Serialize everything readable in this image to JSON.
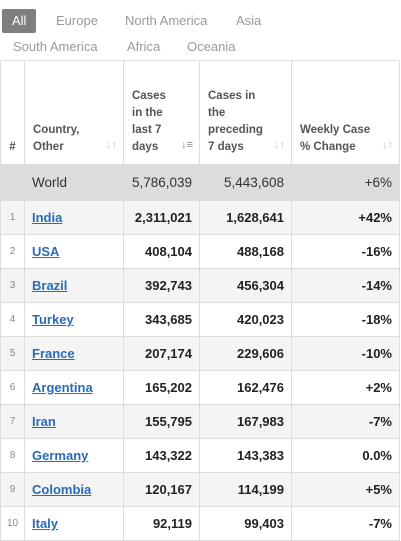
{
  "tabs": [
    "All",
    "Europe",
    "North America",
    "Asia",
    "South America",
    "Africa",
    "Oceania"
  ],
  "headers": {
    "rank": "#",
    "country": "Country, Other",
    "cases7": "Cases in the last 7 days",
    "casesPrev": "Cases in the preceding 7 days",
    "change": "Weekly Case % Change"
  },
  "world": {
    "name": "World",
    "cases7": "5,786,039",
    "casesPrev": "5,443,608",
    "change": "+6%"
  },
  "rows": [
    {
      "rank": "1",
      "name": "India",
      "cases7": "2,311,021",
      "casesPrev": "1,628,641",
      "change": "+42%"
    },
    {
      "rank": "2",
      "name": "USA",
      "cases7": "408,104",
      "casesPrev": "488,168",
      "change": "-16%"
    },
    {
      "rank": "3",
      "name": "Brazil",
      "cases7": "392,743",
      "casesPrev": "456,304",
      "change": "-14%"
    },
    {
      "rank": "4",
      "name": "Turkey",
      "cases7": "343,685",
      "casesPrev": "420,023",
      "change": "-18%"
    },
    {
      "rank": "5",
      "name": "France",
      "cases7": "207,174",
      "casesPrev": "229,606",
      "change": "-10%"
    },
    {
      "rank": "6",
      "name": "Argentina",
      "cases7": "165,202",
      "casesPrev": "162,476",
      "change": "+2%"
    },
    {
      "rank": "7",
      "name": "Iran",
      "cases7": "155,795",
      "casesPrev": "167,983",
      "change": "-7%"
    },
    {
      "rank": "8",
      "name": "Germany",
      "cases7": "143,322",
      "casesPrev": "143,383",
      "change": "0.0%"
    },
    {
      "rank": "9",
      "name": "Colombia",
      "cases7": "120,167",
      "casesPrev": "114,199",
      "change": "+5%"
    },
    {
      "rank": "10",
      "name": "Italy",
      "cases7": "92,119",
      "casesPrev": "99,403",
      "change": "-7%"
    }
  ]
}
